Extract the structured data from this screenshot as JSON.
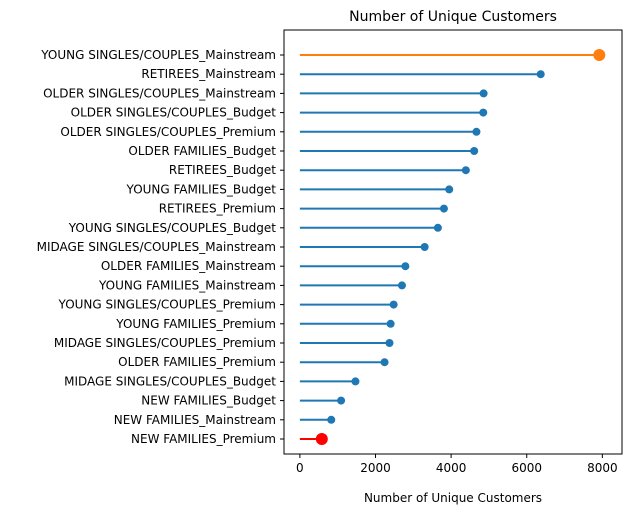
{
  "chart_data": {
    "type": "lollipop",
    "title": "Number of Unique Customers",
    "xlabel": "Number of Unique Customers",
    "ylabel": "",
    "xlim": [
      -420,
      8520
    ],
    "xticks": [
      0,
      2000,
      4000,
      6000,
      8000
    ],
    "grid": false,
    "colors": {
      "default": "#1f77b4",
      "max": "#ff7f0e",
      "min": "#ff0000"
    },
    "categories": [
      "YOUNG SINGLES/COUPLES_Mainstream",
      "RETIREES_Mainstream",
      "OLDER SINGLES/COUPLES_Mainstream",
      "OLDER SINGLES/COUPLES_Budget",
      "OLDER SINGLES/COUPLES_Premium",
      "OLDER FAMILIES_Budget",
      "RETIREES_Budget",
      "YOUNG FAMILIES_Budget",
      "RETIREES_Premium",
      "YOUNG SINGLES/COUPLES_Budget",
      "MIDAGE SINGLES/COUPLES_Mainstream",
      "OLDER FAMILIES_Mainstream",
      "YOUNG FAMILIES_Mainstream",
      "YOUNG SINGLES/COUPLES_Premium",
      "YOUNG FAMILIES_Premium",
      "MIDAGE SINGLES/COUPLES_Premium",
      "OLDER FAMILIES_Premium",
      "MIDAGE SINGLES/COUPLES_Budget",
      "NEW FAMILIES_Budget",
      "NEW FAMILIES_Mainstream",
      "NEW FAMILIES_Premium"
    ],
    "values": [
      7920,
      6370,
      4860,
      4850,
      4670,
      4610,
      4390,
      3950,
      3810,
      3650,
      3300,
      2790,
      2700,
      2480,
      2400,
      2370,
      2240,
      1470,
      1090,
      830,
      580
    ],
    "highlight": [
      "max",
      "default",
      "default",
      "default",
      "default",
      "default",
      "default",
      "default",
      "default",
      "default",
      "default",
      "default",
      "default",
      "default",
      "default",
      "default",
      "default",
      "default",
      "default",
      "default",
      "min"
    ]
  }
}
